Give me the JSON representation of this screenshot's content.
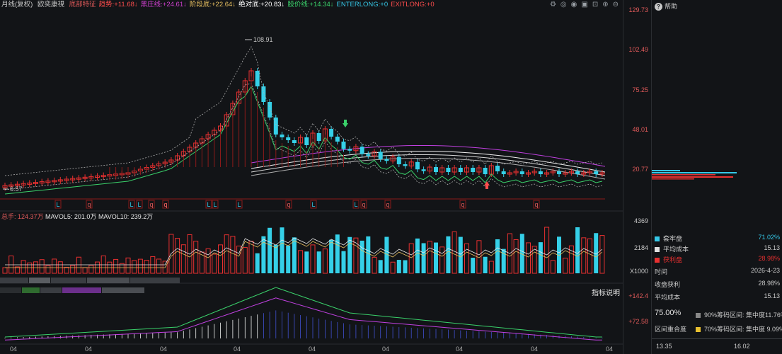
{
  "header": {
    "period_label": "月线(复权)",
    "indicator_name": "欧奕康視",
    "items": [
      {
        "name": "底部特征",
        "value": "",
        "color": "#e05a5a"
      },
      {
        "name": "趋势:",
        "value": "+11.68↓",
        "color": "#ff4d4d"
      },
      {
        "name": "黑庄线:",
        "value": "+24.61↓",
        "color": "#d040d0"
      },
      {
        "name": "阶段底:",
        "value": "+22.64↓",
        "color": "#e8c060"
      },
      {
        "name": "绝对底:",
        "value": "+20.83↓",
        "color": "#ffffff"
      },
      {
        "name": "股价线:",
        "value": "+14.34↓",
        "color": "#3ad06a"
      },
      {
        "name": "ENTERLONG:",
        "value": "+0",
        "color": "#35c8e8"
      },
      {
        "name": "EXITLONG:",
        "value": "+0",
        "color": "#ff4d4d"
      }
    ],
    "toolbar_icons": [
      "settings-icon",
      "target-icon",
      "eye-icon",
      "save-icon",
      "lock-icon",
      "add-icon",
      "remove-icon"
    ]
  },
  "price_axis": {
    "ticks": [
      "129.73",
      "102.49",
      "75.25",
      "48.01",
      "20.77"
    ]
  },
  "volume_axis": {
    "ticks": [
      "4369",
      "2184",
      "X1000"
    ]
  },
  "macd_axis": {
    "ticks": [
      "+142.4",
      "+72.58"
    ]
  },
  "annotations": {
    "high_label": "108.91",
    "low_label": "6.57"
  },
  "volume_header": {
    "total": "总手: 124.37万",
    "ma5": "MAVOL5: 201.0万",
    "ma10": "MAVOL10: 239.2万"
  },
  "macd_header": {
    "explain_link": "指标说明"
  },
  "x_labels": [
    "04",
    "04",
    "04",
    "04",
    "04",
    "04",
    "04",
    "04",
    "04"
  ],
  "signal_marks": [
    "L",
    "q",
    "q",
    "L",
    "L",
    "q",
    "q",
    "L",
    "L",
    "L",
    "q",
    "L",
    "L",
    "q",
    "q",
    "q",
    "q"
  ],
  "right_panel": {
    "help_label": "帮助",
    "legend": [
      {
        "name": "套牢盘",
        "value": "71.02%",
        "color": "#35c8e8"
      },
      {
        "name": "平均成本",
        "value": "15.13",
        "color": "#e0e0e0"
      },
      {
        "name": "获利盘",
        "value": "28.98%",
        "color": "#e83030"
      }
    ],
    "stats": [
      {
        "label": "时间",
        "value": "2026-4-23"
      },
      {
        "label": "收盘获利",
        "value": "28.98%"
      },
      {
        "label": "平均成本",
        "value": "15.13"
      }
    ],
    "big_pct": "75.00%",
    "overlap_label": "区间重合度",
    "range_90": {
      "label": "90%筹码区间:",
      "conc": "集中度11.76%",
      "color": "#888888"
    },
    "range_70": {
      "label": "70%筹码区间:",
      "conc": "集中度  9.09%",
      "color": "#e8c030"
    },
    "bottom_left": "13.35",
    "bottom_right": "16.02"
  }
}
